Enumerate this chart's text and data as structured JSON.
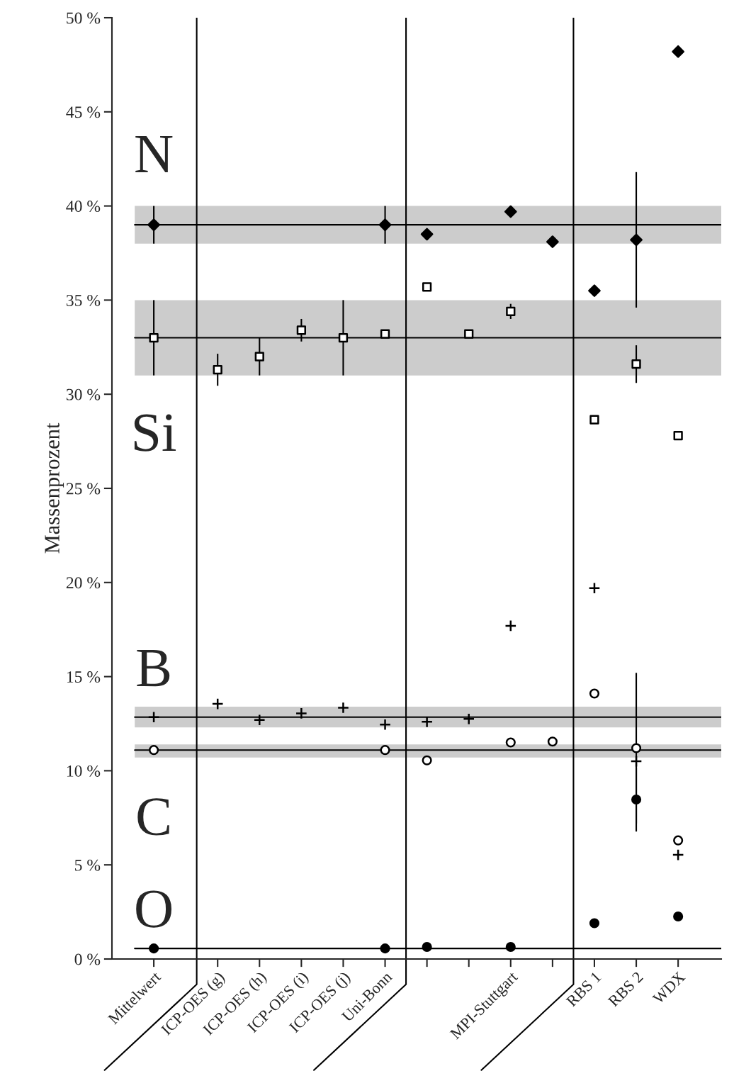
{
  "chart_data": {
    "type": "scatter",
    "ylabel": "Massenprozent",
    "categories": [
      "Mittelwert",
      "ICP-OES (g)",
      "ICP-OES (h)",
      "ICP-OES (i)",
      "ICP-OES (j)",
      "Uni-Bonn",
      null,
      null,
      "MPI-Stuttgart",
      null,
      "RBS 1",
      "RBS 2",
      "WDX"
    ],
    "series": [
      {
        "color": "#000000",
        "marker": "diamond",
        "values": [
          39.0,
          null,
          null,
          null,
          null,
          39.0,
          38.5,
          null,
          39.7,
          38.1,
          35.5,
          38.2,
          48.2
        ],
        "errors": [
          1.0,
          null,
          null,
          null,
          null,
          1.0,
          null,
          null,
          null,
          null,
          null,
          3.6,
          null
        ]
      },
      {
        "color": "#ffffff",
        "marker": "square",
        "values": [
          33.0,
          31.3,
          32.0,
          33.4,
          33.0,
          33.2,
          35.7,
          33.2,
          34.4,
          null,
          28.65,
          31.6,
          27.8
        ],
        "errors": [
          2.0,
          0.85,
          1.0,
          0.6,
          2.0,
          null,
          null,
          null,
          0.4,
          null,
          null,
          1.0,
          null
        ]
      },
      {
        "color": "#000000",
        "marker": "cross",
        "values": [
          12.85,
          13.55,
          12.7,
          13.05,
          13.35,
          12.45,
          12.6,
          12.75,
          17.7,
          null,
          19.7,
          10.5,
          5.53
        ]
      },
      {
        "color": "#ffffff",
        "marker": "circle",
        "values": [
          11.1,
          null,
          null,
          null,
          null,
          11.1,
          10.55,
          null,
          11.5,
          11.55,
          14.1,
          11.2,
          6.3
        ],
        "errors": [
          null,
          null,
          null,
          null,
          null,
          null,
          null,
          null,
          null,
          null,
          null,
          4.0,
          null
        ]
      },
      {
        "color": "#000000",
        "marker": "circle",
        "values": [
          0.56,
          null,
          null,
          null,
          null,
          0.56,
          0.64,
          null,
          0.64,
          null,
          1.9,
          8.47,
          2.26
        ],
        "errors": [
          null,
          null,
          null,
          null,
          null,
          null,
          null,
          null,
          null,
          null,
          null,
          1.7,
          null
        ]
      }
    ],
    "ylim": [
      0,
      50
    ],
    "yticks": [
      {
        "value": 0,
        "label": "0 %"
      },
      {
        "value": 5,
        "label": "5 %"
      },
      {
        "value": 10,
        "label": "10 %"
      },
      {
        "value": 15,
        "label": "15 %"
      },
      {
        "value": 20,
        "label": "20 %"
      },
      {
        "value": 25,
        "label": "25 %"
      },
      {
        "value": 30,
        "label": "30 %"
      },
      {
        "value": 35,
        "label": "35 %"
      },
      {
        "value": 40,
        "label": "40 %"
      },
      {
        "value": 45,
        "label": "45 %"
      },
      {
        "value": 50,
        "label": "50 %"
      }
    ],
    "ref_lines": [
      {
        "axis": "y",
        "value": 39.0,
        "color": "#000000"
      },
      {
        "axis": "y",
        "value": 33.0,
        "color": "#000000"
      },
      {
        "axis": "y",
        "value": 12.85,
        "color": "#000000"
      },
      {
        "axis": "y",
        "value": 11.1,
        "color": "#000000"
      },
      {
        "axis": "y",
        "value": 0.56,
        "color": "#000000"
      }
    ],
    "bands": [
      {
        "axis": "y",
        "from": 38.0,
        "to": 40.0,
        "color": "#cccccc"
      },
      {
        "axis": "y",
        "from": 31.0,
        "to": 35.0,
        "color": "#cccccc"
      },
      {
        "axis": "y",
        "from": 12.3,
        "to": 13.4,
        "color": "#cccccc"
      },
      {
        "axis": "y",
        "from": 10.7,
        "to": 11.4,
        "color": "#cccccc"
      }
    ],
    "annotations": [
      "N",
      "Si",
      "B",
      "C",
      "O"
    ],
    "grid": false,
    "legend": false
  }
}
